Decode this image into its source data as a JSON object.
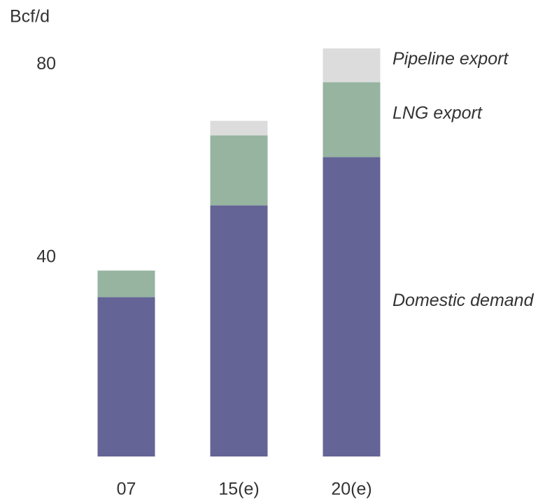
{
  "chart_data": {
    "type": "bar",
    "stacked": true,
    "y_axis_label": "Bcf/d",
    "categories": [
      "07",
      "15(e)",
      "20(e)"
    ],
    "series": [
      {
        "name": "Domestic demand",
        "color": "#646496",
        "values": [
          33,
          52,
          62
        ]
      },
      {
        "name": "LNG export",
        "color": "#96b4a0",
        "values": [
          5.5,
          14.5,
          15.5
        ]
      },
      {
        "name": "Pipeline export",
        "color": "#dcdcdc",
        "values": [
          0,
          3,
          7
        ]
      }
    ],
    "ylim": [
      0,
      88
    ],
    "yticks": [
      40,
      80
    ],
    "grid": false
  }
}
